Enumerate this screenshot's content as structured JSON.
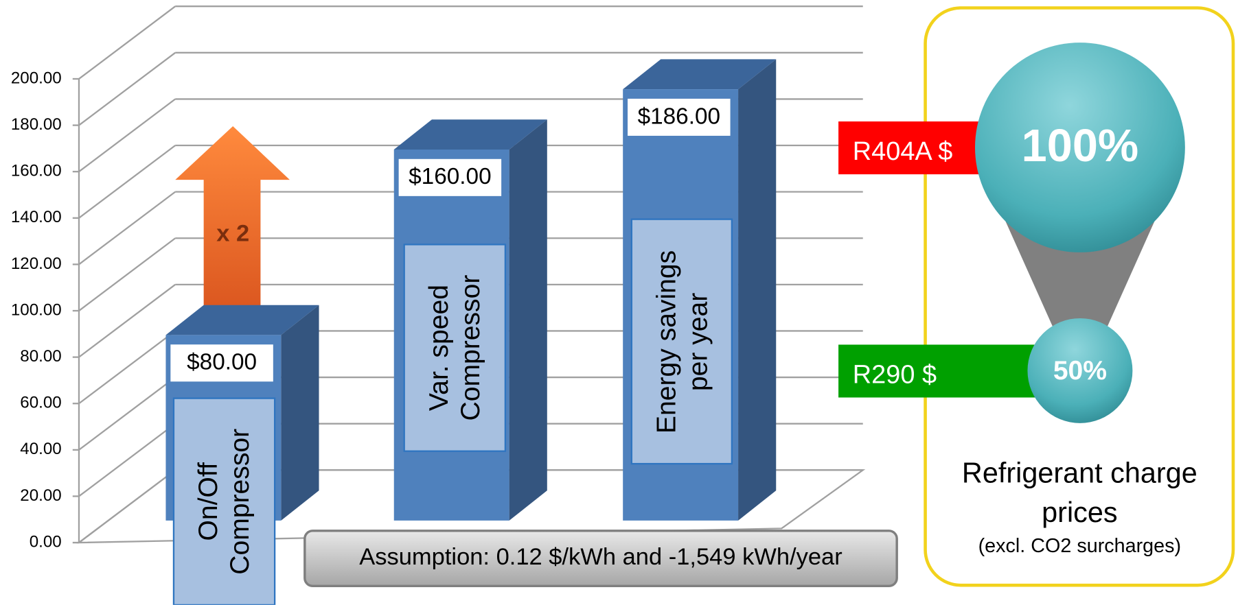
{
  "chart_data": {
    "type": "bar3d",
    "categories": [
      "On/Off Compressor",
      "Var. speed Compressor",
      "Energy savings per year"
    ],
    "values": [
      80,
      160,
      186
    ],
    "value_labels": [
      "$80.00",
      "$160.00",
      "$186.00"
    ],
    "color": "#4f81bd",
    "ylim": [
      0,
      200
    ],
    "yticks": [
      {
        "value": 0,
        "label": "0.00"
      },
      {
        "value": 20,
        "label": "20.00"
      },
      {
        "value": 40,
        "label": "40.00"
      },
      {
        "value": 60,
        "label": "60.00"
      },
      {
        "value": 80,
        "label": "80.00"
      },
      {
        "value": 100,
        "label": "100.00"
      },
      {
        "value": 120,
        "label": "120.00"
      },
      {
        "value": 140,
        "label": "140.00"
      },
      {
        "value": 160,
        "label": "160.00"
      },
      {
        "value": 180,
        "label": "180.00"
      },
      {
        "value": 200,
        "label": "200.00"
      }
    ],
    "grid": true,
    "annotations": {
      "arrow": "x 2",
      "assumption": "Assumption: 0.12 $/kWh and -1,549 kWh/year"
    }
  },
  "refrigerant_panel": {
    "title": "Refrigerant charge prices",
    "note": "(excl. CO2 surcharges)",
    "items": [
      {
        "name": "R404A $",
        "color": "#ff0000",
        "value": 100,
        "value_label": "100%"
      },
      {
        "name": "R290 $",
        "color": "#00a000",
        "value": 50,
        "value_label": "50%"
      }
    ]
  }
}
